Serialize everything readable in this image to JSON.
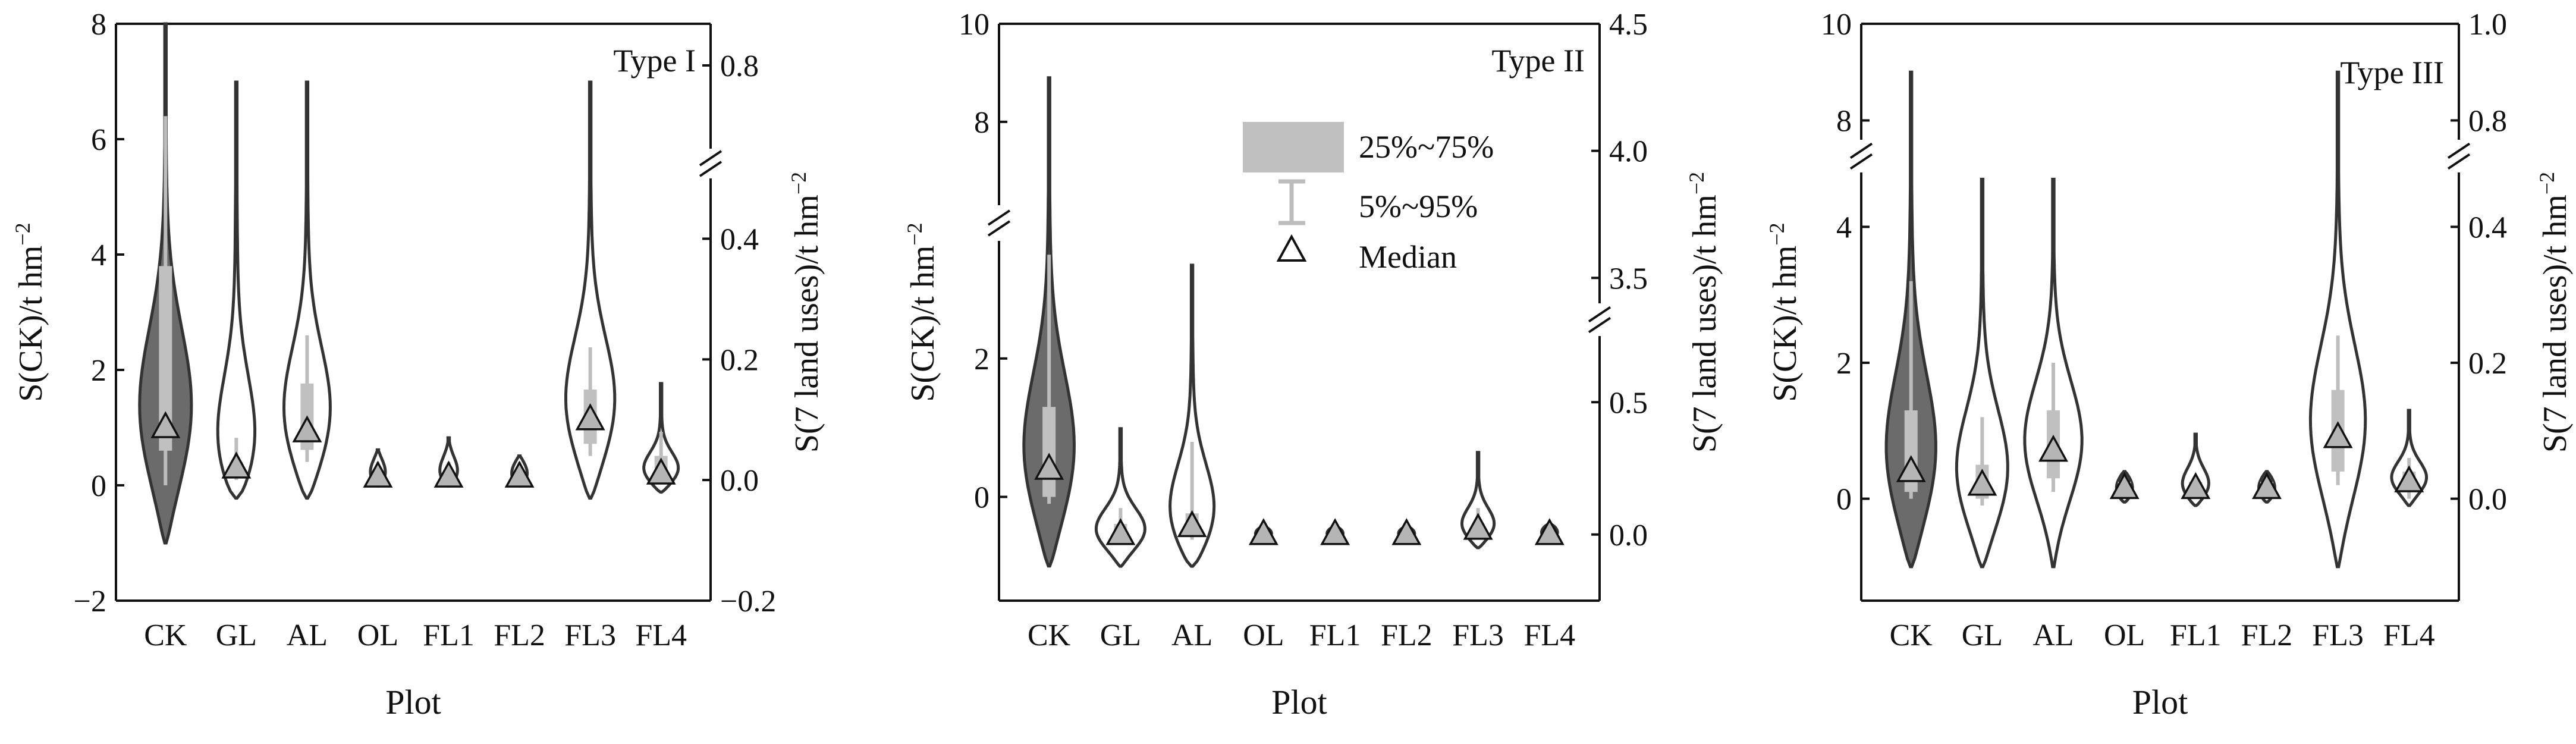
{
  "figure": {
    "shared_xlabel": "Plot",
    "categories": [
      "CK",
      "GL",
      "AL",
      "OL",
      "FL1",
      "FL2",
      "FL3",
      "FL4"
    ]
  },
  "legend": {
    "iqr_label": "25%~75%",
    "whisker_label": "5%~95%",
    "median_label": "Median"
  },
  "colors": {
    "violin_fill_ck": "#6b6b6b",
    "violin_fill_other": "#ffffff",
    "violin_stroke": "#333333",
    "box_fill": "#c0c0c0",
    "whisker": "#bdbdbd",
    "median_marker": "#b5b5b5"
  },
  "chart_data": [
    {
      "type": "violin",
      "title": "Type I",
      "xlabel": "Plot",
      "ylabel_left": "S(CK)/t hm",
      "ylabel_left_sup": "−2",
      "ylabel_right": "S(7 land uses)/t hm",
      "ylabel_right_sup": "−2",
      "left_axis": {
        "segments": [
          {
            "range": [
              -2,
              8
            ],
            "ticks": [
              -2,
              0,
              2,
              4,
              6,
              8
            ],
            "tick_labels": [
              "−2",
              "0",
              "2",
              "4",
              "6",
              "8"
            ]
          }
        ]
      },
      "right_axis": {
        "segments": [
          {
            "range": [
              -0.2,
              0.5
            ],
            "ticks": [
              -0.2,
              0.0,
              0.2,
              0.4
            ],
            "tick_labels": [
              "−0.2",
              "0.0",
              "0.2",
              "0.4"
            ]
          },
          {
            "range": [
              0.7,
              0.85
            ],
            "ticks": [
              0.8
            ],
            "tick_labels": [
              "0.8"
            ]
          }
        ]
      },
      "series": [
        {
          "name": "CK",
          "axis": "left",
          "dist_min": -1.0,
          "dist_max": 8.0,
          "q1": 0.6,
          "q3": 3.8,
          "p5": 0.0,
          "p95": 6.4,
          "median": 1.0
        },
        {
          "name": "GL",
          "axis": "right",
          "dist_min": -0.03,
          "dist_max": 0.78,
          "q1": 0.01,
          "q3": 0.03,
          "p5": 0.0,
          "p95": 0.07,
          "median": 0.02
        },
        {
          "name": "AL",
          "axis": "right",
          "dist_min": -0.03,
          "dist_max": 0.78,
          "q1": 0.05,
          "q3": 0.16,
          "p5": 0.03,
          "p95": 0.24,
          "median": 0.08
        },
        {
          "name": "OL",
          "axis": "right",
          "dist_min": -0.01,
          "dist_max": 0.05,
          "q1": 0.003,
          "q3": 0.012,
          "p5": 0.0,
          "p95": 0.03,
          "median": 0.005
        },
        {
          "name": "FL1",
          "axis": "right",
          "dist_min": -0.01,
          "dist_max": 0.07,
          "q1": 0.003,
          "q3": 0.012,
          "p5": 0.0,
          "p95": 0.03,
          "median": 0.005
        },
        {
          "name": "FL2",
          "axis": "right",
          "dist_min": -0.01,
          "dist_max": 0.04,
          "q1": 0.003,
          "q3": 0.012,
          "p5": 0.0,
          "p95": 0.03,
          "median": 0.005
        },
        {
          "name": "FL3",
          "axis": "right",
          "dist_min": -0.03,
          "dist_max": 0.78,
          "q1": 0.06,
          "q3": 0.15,
          "p5": 0.04,
          "p95": 0.22,
          "median": 0.1
        },
        {
          "name": "FL4",
          "axis": "right",
          "dist_min": -0.02,
          "dist_max": 0.16,
          "q1": 0.005,
          "q3": 0.04,
          "p5": 0.0,
          "p95": 0.08,
          "median": 0.01
        }
      ]
    },
    {
      "type": "violin",
      "title": "Type II",
      "xlabel": "Plot",
      "ylabel_left": "S(CK)/t hm",
      "ylabel_left_sup": "−2",
      "ylabel_right": "S(7 land uses)/t hm",
      "ylabel_right_sup": "−2",
      "left_axis": {
        "segments": [
          {
            "range": [
              -1.5,
              3.7
            ],
            "ticks": [
              0,
              2
            ],
            "tick_labels": [
              "0",
              "2"
            ]
          },
          {
            "range": [
              6.3,
              10
            ],
            "ticks": [
              8,
              10
            ],
            "tick_labels": [
              "8",
              "10"
            ]
          }
        ]
      },
      "right_axis": {
        "segments": [
          {
            "range": [
              -0.25,
              0.75
            ],
            "ticks": [
              0.0,
              0.5
            ],
            "tick_labels": [
              "0.0",
              "0.5"
            ]
          },
          {
            "range": [
              3.4,
              4.5
            ],
            "ticks": [
              3.5,
              4.0,
              4.5
            ],
            "tick_labels": [
              "3.5",
              "4.0",
              "4.5"
            ]
          }
        ]
      },
      "series": [
        {
          "name": "CK",
          "axis": "left",
          "dist_min": -1.0,
          "dist_max": 8.9,
          "q1": 0.0,
          "q3": 1.3,
          "p5": -0.1,
          "p95": 3.5,
          "median": 0.4
        },
        {
          "name": "GL",
          "axis": "right",
          "dist_min": -0.12,
          "dist_max": 0.4,
          "q1": -0.01,
          "q3": 0.04,
          "p5": -0.03,
          "p95": 0.1,
          "median": 0.0
        },
        {
          "name": "AL",
          "axis": "right",
          "dist_min": -0.12,
          "dist_max": 3.55,
          "q1": 0.0,
          "q3": 0.08,
          "p5": -0.02,
          "p95": 0.35,
          "median": 0.03
        },
        {
          "name": "OL",
          "axis": "right",
          "dist_min": -0.02,
          "dist_max": 0.03,
          "q1": -0.005,
          "q3": 0.005,
          "p5": -0.01,
          "p95": 0.015,
          "median": 0.0
        },
        {
          "name": "FL1",
          "axis": "right",
          "dist_min": -0.02,
          "dist_max": 0.03,
          "q1": -0.005,
          "q3": 0.005,
          "p5": -0.01,
          "p95": 0.015,
          "median": 0.0
        },
        {
          "name": "FL2",
          "axis": "right",
          "dist_min": -0.02,
          "dist_max": 0.03,
          "q1": -0.005,
          "q3": 0.005,
          "p5": -0.01,
          "p95": 0.015,
          "median": 0.0
        },
        {
          "name": "FL3",
          "axis": "right",
          "dist_min": -0.05,
          "dist_max": 0.31,
          "q1": 0.005,
          "q3": 0.04,
          "p5": 0.0,
          "p95": 0.1,
          "median": 0.02
        },
        {
          "name": "FL4",
          "axis": "right",
          "dist_min": -0.02,
          "dist_max": 0.04,
          "q1": -0.005,
          "q3": 0.005,
          "p5": -0.01,
          "p95": 0.015,
          "median": 0.0
        }
      ]
    },
    {
      "type": "violin",
      "title": "Type III",
      "xlabel": "Plot",
      "ylabel_left": "S(CK)/t hm",
      "ylabel_left_sup": "−2",
      "ylabel_right": "S(7 land uses)/t hm",
      "ylabel_right_sup": "−2",
      "left_axis": {
        "segments": [
          {
            "range": [
              -1.5,
              4.8
            ],
            "ticks": [
              0,
              2,
              4
            ],
            "tick_labels": [
              "0",
              "2",
              "4"
            ]
          },
          {
            "range": [
              7.6,
              10
            ],
            "ticks": [
              8,
              10
            ],
            "tick_labels": [
              "8",
              "10"
            ]
          }
        ]
      },
      "right_axis": {
        "segments": [
          {
            "range": [
              -0.15,
              0.48
            ],
            "ticks": [
              0.0,
              0.2,
              0.4
            ],
            "tick_labels": [
              "0.0",
              "0.2",
              "0.4"
            ]
          },
          {
            "range": [
              0.76,
              1.0
            ],
            "ticks": [
              0.8,
              1.0
            ],
            "tick_labels": [
              "0.8",
              "1.0"
            ]
          }
        ]
      },
      "series": [
        {
          "name": "CK",
          "axis": "left",
          "dist_min": -1.0,
          "dist_max": 9.0,
          "q1": 0.1,
          "q3": 1.3,
          "p5": 0.0,
          "p95": 3.2,
          "median": 0.4
        },
        {
          "name": "GL",
          "axis": "right",
          "dist_min": -0.1,
          "dist_max": 0.47,
          "q1": 0.0,
          "q3": 0.05,
          "p5": -0.01,
          "p95": 0.12,
          "median": 0.02
        },
        {
          "name": "AL",
          "axis": "right",
          "dist_min": -0.1,
          "dist_max": 0.47,
          "q1": 0.03,
          "q3": 0.13,
          "p5": 0.01,
          "p95": 0.2,
          "median": 0.07
        },
        {
          "name": "OL",
          "axis": "right",
          "dist_min": -0.005,
          "dist_max": 0.04,
          "q1": 0.005,
          "q3": 0.025,
          "p5": 0.0,
          "p95": 0.03,
          "median": 0.015
        },
        {
          "name": "FL1",
          "axis": "right",
          "dist_min": -0.01,
          "dist_max": 0.095,
          "q1": 0.005,
          "q3": 0.025,
          "p5": 0.0,
          "p95": 0.035,
          "median": 0.015
        },
        {
          "name": "FL2",
          "axis": "right",
          "dist_min": -0.005,
          "dist_max": 0.04,
          "q1": 0.005,
          "q3": 0.025,
          "p5": 0.0,
          "p95": 0.035,
          "median": 0.015
        },
        {
          "name": "FL3",
          "axis": "right",
          "dist_min": -0.1,
          "dist_max": 0.9,
          "q1": 0.04,
          "q3": 0.16,
          "p5": 0.02,
          "p95": 0.24,
          "median": 0.09
        },
        {
          "name": "FL4",
          "axis": "right",
          "dist_min": -0.01,
          "dist_max": 0.13,
          "q1": 0.01,
          "q3": 0.04,
          "p5": 0.0,
          "p95": 0.06,
          "median": 0.025
        }
      ]
    }
  ]
}
